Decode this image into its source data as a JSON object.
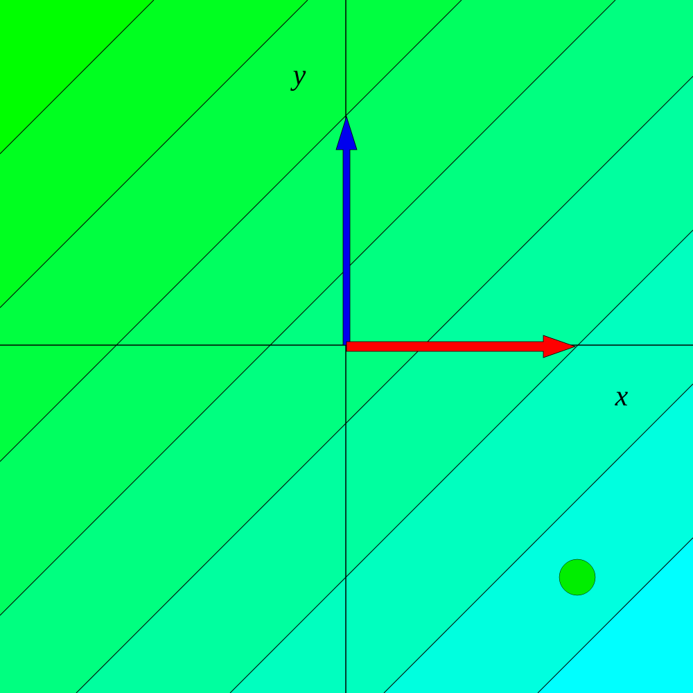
{
  "labels": {
    "x": "x",
    "y": "y"
  }
}
